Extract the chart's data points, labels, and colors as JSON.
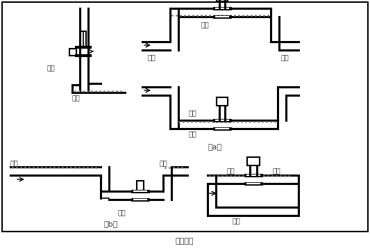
{
  "title": "图（四）",
  "label_a": "（a）",
  "label_b": "（b）",
  "bg_color": "#ffffff",
  "line_color": "#000000",
  "text_color": "#333333",
  "lw": 2.2,
  "lw_thin": 1.2,
  "fig_width": 5.33,
  "fig_height": 3.61,
  "dpi": 100,
  "texts": {
    "correct1": "正确",
    "liquid1": "液体",
    "correct_a": "正确",
    "error_a": "错误",
    "liquid_a1": "液体",
    "liquid_a2": "液体",
    "liquid_a3": "液体",
    "bubble_b1": "气泡",
    "bubble_b2": "气泡",
    "correct_b": "正确",
    "bubble_b3": "气泡",
    "bubble_b4": "气泡",
    "error_b": "错误"
  }
}
